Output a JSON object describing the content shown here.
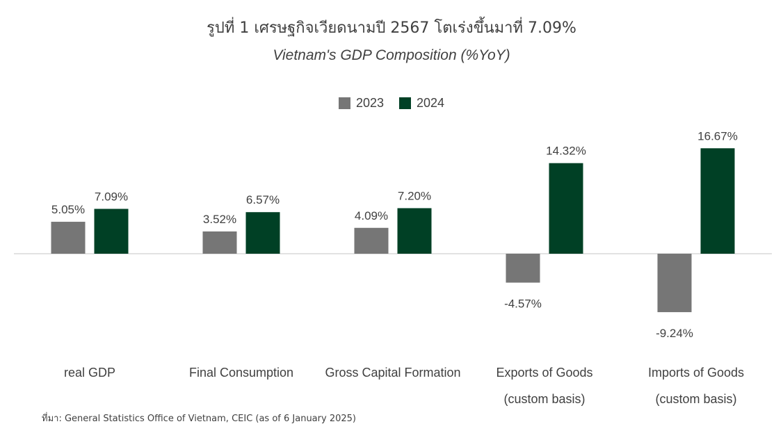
{
  "title": "รูปที่ 1 เศรษฐกิจเวียดนามปี 2567 โตเร่งขึ้นมาที่ 7.09%",
  "subtitle": "Vietnam's GDP Composition (%YoY)",
  "source": "ที่มา: General Statistics Office of Vietnam, CEIC (as of 6 January 2025)",
  "colors": {
    "2023": "#767676",
    "2024": "#004025",
    "axis": "#d9d9d9"
  },
  "chart_data": {
    "type": "bar",
    "categories": [
      [
        "real GDP"
      ],
      [
        "Final Consumption"
      ],
      [
        "Gross Capital Formation"
      ],
      [
        "Exports of Goods",
        "(custom basis)"
      ],
      [
        "Imports of Goods",
        "(custom basis)"
      ]
    ],
    "series": [
      {
        "name": "2023",
        "values": [
          5.05,
          3.52,
          4.09,
          -4.57,
          -9.24
        ],
        "labels": [
          "5.05%",
          "3.52%",
          "4.09%",
          "-4.57%",
          "-9.24%"
        ]
      },
      {
        "name": "2024",
        "values": [
          7.09,
          6.57,
          7.2,
          14.32,
          16.67
        ],
        "labels": [
          "7.09%",
          "6.57%",
          "7.20%",
          "14.32%",
          "16.67%"
        ]
      }
    ],
    "legend_position": "top-center",
    "grid": false
  }
}
